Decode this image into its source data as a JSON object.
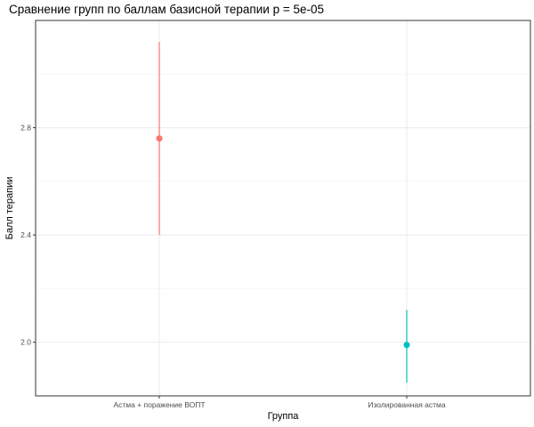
{
  "chart_data": {
    "type": "scatter",
    "title": "Сравнение групп по баллам базисной терапии p = 5e-05",
    "xlabel": "Группа",
    "ylabel": "Балл терапии",
    "categories": [
      "Астма + поражение ВОПТ",
      "Изолированная астма"
    ],
    "ylim": [
      1.8,
      3.2
    ],
    "yticks": [
      2.0,
      2.4,
      2.8
    ],
    "ytick_labels": [
      "2.0",
      "2.4",
      "2.8"
    ],
    "grid": true,
    "legend": "none",
    "series": [
      {
        "category": "Астма + поражение ВОПТ",
        "mean": 2.76,
        "lower": 2.4,
        "upper": 3.12,
        "color": "#F8766D"
      },
      {
        "category": "Изолированная астма",
        "mean": 1.99,
        "lower": 1.85,
        "upper": 2.12,
        "color": "#00BFC4"
      }
    ]
  }
}
